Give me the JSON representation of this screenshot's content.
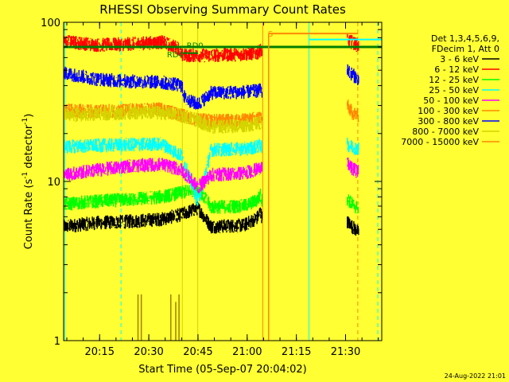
{
  "chart_data": {
    "type": "line",
    "title": "RHESSI Observing Summary Count Rates",
    "xlabel": "Start Time (05-Sep-07 20:04:02)",
    "ylabel_main": "Count Rate (s",
    "ylabel_sup1": "-1",
    "ylabel_mid": " detector",
    "ylabel_sup2": "-1",
    "ylabel_end": ")",
    "x_unit": "minutes after 20:04:02",
    "xlim": [
      0,
      97
    ],
    "ylim": [
      1,
      100
    ],
    "y_scale": "log",
    "x_ticks": [
      {
        "x": 10.97,
        "label": "20:15"
      },
      {
        "x": 25.97,
        "label": "20:30"
      },
      {
        "x": 40.97,
        "label": "20:45"
      },
      {
        "x": 55.97,
        "label": "21:00"
      },
      {
        "x": 70.97,
        "label": "21:15"
      },
      {
        "x": 85.97,
        "label": "21:30"
      }
    ],
    "y_ticks": [
      {
        "y": 1,
        "label": "1"
      },
      {
        "y": 10,
        "label": "10"
      },
      {
        "y": 100,
        "label": "100"
      }
    ],
    "legend_header": [
      "Det 1,3,4,5,6,9,",
      "FDecim 1, Att 0"
    ],
    "legend_position": "right",
    "series": [
      {
        "name": "3 - 6 keV",
        "color": "#000000",
        "points": [
          [
            0,
            5.2
          ],
          [
            10,
            5.5
          ],
          [
            20,
            5.6
          ],
          [
            30,
            5.8
          ],
          [
            36,
            6.2
          ],
          [
            41,
            6.8
          ],
          [
            45,
            5.2
          ],
          [
            55,
            5.3
          ],
          [
            59,
            5.9
          ],
          [
            60,
            6.5
          ],
          [
            60.5,
            5.9
          ]
        ],
        "points2": [
          [
            86.5,
            5.6
          ],
          [
            88,
            5.2
          ],
          [
            90,
            4.8
          ]
        ]
      },
      {
        "name": "6 - 12 keV",
        "color": "#ff0000",
        "points": [
          [
            0,
            76
          ],
          [
            10,
            72
          ],
          [
            20,
            73
          ],
          [
            30,
            75
          ],
          [
            35,
            69
          ],
          [
            36,
            62
          ],
          [
            45,
            62
          ],
          [
            55,
            63
          ],
          [
            59,
            64
          ],
          [
            60,
            67
          ],
          [
            60.5,
            66
          ]
        ],
        "points2": [
          [
            86.5,
            76
          ],
          [
            88,
            75
          ],
          [
            90,
            71
          ]
        ]
      },
      {
        "name": "12 - 25 keV",
        "color": "#00ff00",
        "points": [
          [
            0,
            7.2
          ],
          [
            10,
            7.5
          ],
          [
            20,
            7.7
          ],
          [
            30,
            8.0
          ],
          [
            36,
            8.5
          ],
          [
            41,
            9.0
          ],
          [
            45,
            6.9
          ],
          [
            55,
            7.0
          ],
          [
            59,
            7.6
          ],
          [
            60,
            8.2
          ],
          [
            60.5,
            7.6
          ]
        ],
        "points2": [
          [
            86.5,
            7.8
          ],
          [
            88,
            7.2
          ],
          [
            90,
            6.7
          ]
        ]
      },
      {
        "name": "25 - 50 keV",
        "color": "#00ffff",
        "points": [
          [
            0,
            16.5
          ],
          [
            10,
            16.8
          ],
          [
            20,
            17.0
          ],
          [
            30,
            17.2
          ],
          [
            36,
            14.5
          ],
          [
            41,
            7.4
          ],
          [
            45,
            15.8
          ],
          [
            55,
            16.0
          ],
          [
            59,
            16.5
          ],
          [
            60,
            17.0
          ],
          [
            60.5,
            16.6
          ]
        ],
        "points2": [
          [
            86.5,
            17
          ],
          [
            88,
            16.5
          ],
          [
            90,
            16
          ]
        ]
      },
      {
        "name": "50 - 100 keV",
        "color": "#ff00ff",
        "points": [
          [
            0,
            11.0
          ],
          [
            10,
            11.8
          ],
          [
            20,
            12.5
          ],
          [
            30,
            12.8
          ],
          [
            36,
            11.8
          ],
          [
            41,
            9.2
          ],
          [
            45,
            11.0
          ],
          [
            55,
            11.3
          ],
          [
            59,
            11.9
          ],
          [
            60,
            12.3
          ],
          [
            60.5,
            11.9
          ]
        ],
        "points2": [
          [
            86.5,
            13
          ],
          [
            88,
            12
          ],
          [
            90,
            11.5
          ]
        ]
      },
      {
        "name": "100 - 300 keV",
        "color": "#ff8800",
        "points": [
          [
            0,
            28
          ],
          [
            10,
            27.5
          ],
          [
            20,
            28
          ],
          [
            30,
            28.5
          ],
          [
            36,
            26
          ],
          [
            41,
            24.5
          ],
          [
            45,
            24
          ],
          [
            55,
            24.2
          ],
          [
            59,
            25
          ],
          [
            60,
            25.5
          ],
          [
            60.5,
            25
          ]
        ],
        "points2": [
          [
            86.5,
            30
          ],
          [
            88,
            27
          ],
          [
            90,
            26
          ]
        ]
      },
      {
        "name": "300 - 800 keV",
        "color": "#0000ff",
        "points": [
          [
            0,
            48
          ],
          [
            10,
            44
          ],
          [
            20,
            42.5
          ],
          [
            30,
            42
          ],
          [
            36,
            40
          ],
          [
            37,
            33
          ],
          [
            40,
            31
          ],
          [
            41,
            30.5
          ],
          [
            45,
            36
          ],
          [
            55,
            36.5
          ],
          [
            59,
            37
          ],
          [
            60,
            37.5
          ],
          [
            60.5,
            37
          ]
        ],
        "points2": [
          [
            86.5,
            50
          ],
          [
            88,
            47
          ],
          [
            90,
            44
          ]
        ]
      },
      {
        "name": "800 - 7000 keV",
        "color": "#d4d400",
        "points": [
          [
            0,
            26
          ],
          [
            10,
            26.5
          ],
          [
            20,
            27
          ],
          [
            30,
            27
          ],
          [
            36,
            26
          ],
          [
            41,
            24
          ],
          [
            45,
            22
          ],
          [
            55,
            22.5
          ],
          [
            59,
            23
          ],
          [
            60,
            23.5
          ],
          [
            60.5,
            23
          ]
        ],
        "points2": []
      },
      {
        "name": "7000 - 15000 keV",
        "color": "#ff8800",
        "points": [],
        "points2": []
      }
    ],
    "step_series": [
      {
        "name": "RD4",
        "color": "#008000",
        "width": 3,
        "points": [
          [
            0,
            70
          ],
          [
            97,
            70
          ]
        ]
      },
      {
        "name": "RD0",
        "color": "#008000",
        "width": 2,
        "points": [
          [
            36.3,
            64
          ],
          [
            41,
            64
          ]
        ]
      }
    ],
    "flag_labels": [
      {
        "label": "RD4",
        "x": 31.5,
        "y": 63,
        "color": "#008000"
      },
      {
        "label": "RD0",
        "x": 37.5,
        "y": 72,
        "color": "#008000"
      },
      {
        "label": "S",
        "x": 62.3,
        "y": 85,
        "color": "#ff8800"
      }
    ],
    "saa": {
      "color": "#ff8800",
      "x0": 62.5,
      "x1": 89.8,
      "y": 85,
      "y_hi": 78
    },
    "vlines": [
      {
        "x": 0.3,
        "color": "#00ffff",
        "style": "solid"
      },
      {
        "x": 17.5,
        "color": "#00ffff",
        "style": "dashed"
      },
      {
        "x": 74.8,
        "color": "#00ffff",
        "style": "solid"
      },
      {
        "x": 95.8,
        "color": "#00ffff",
        "style": "dashed"
      },
      {
        "x": 60.7,
        "color": "#ff8800",
        "style": "solid"
      },
      {
        "x": 89.7,
        "color": "#ff8800",
        "style": "dashed"
      },
      {
        "x": 36.2,
        "color": "#d4d400",
        "style": "solid"
      },
      {
        "x": 40.9,
        "color": "#d4d400",
        "style": "solid"
      }
    ],
    "spikes": [
      {
        "x0": 22.5,
        "x1": 22.6,
        "y": 1.95
      },
      {
        "x0": 23.5,
        "x1": 23.6,
        "y": 1.95
      },
      {
        "x0": 32.5,
        "x1": 32.6,
        "y": 1.95
      },
      {
        "x0": 34.0,
        "x1": 34.1,
        "y": 1.75
      },
      {
        "x0": 35.0,
        "x1": 35.1,
        "y": 1.95
      }
    ]
  },
  "footer": {
    "timestamp": "24-Aug-2022 21:01"
  }
}
